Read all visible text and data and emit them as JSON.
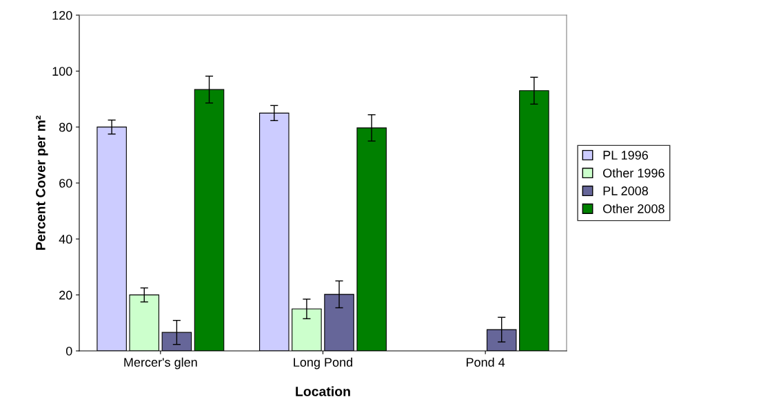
{
  "chart_data": {
    "type": "bar",
    "xlabel": "Location",
    "ylabel": "Percent Cover per m²",
    "categories": [
      "Mercer's glen",
      "Long Pond",
      "Pond 4"
    ],
    "series": [
      {
        "name": "PL 1996",
        "color": "#ccccff",
        "values": [
          80,
          85,
          null
        ],
        "errors": [
          2.5,
          2.7,
          null
        ]
      },
      {
        "name": "Other 1996",
        "color": "#ccffcc",
        "values": [
          20,
          15,
          null
        ],
        "errors": [
          2.5,
          3.5,
          null
        ]
      },
      {
        "name": "PL 2008",
        "color": "#666699",
        "values": [
          6.6,
          20.2,
          7.6
        ],
        "errors": [
          4.3,
          4.8,
          4.4
        ]
      },
      {
        "name": "Other 2008",
        "color": "#008000",
        "values": [
          93.4,
          79.7,
          93
        ],
        "errors": [
          4.8,
          4.7,
          4.8
        ]
      }
    ],
    "ylim": [
      0,
      120
    ],
    "yticks": [
      0,
      20,
      40,
      60,
      80,
      100,
      120
    ],
    "grid": false,
    "legend": "right"
  }
}
